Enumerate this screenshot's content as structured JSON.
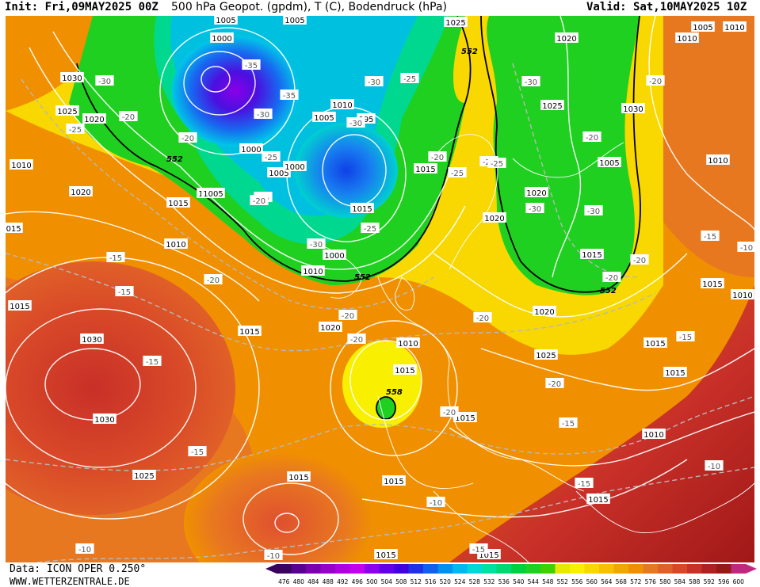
{
  "header": {
    "init": "Init: Fri,09MAY2025 00Z",
    "title": "500 hPa Geopot. (gpdm), T (C), Bodendruck (hPa)",
    "valid": "Valid: Sat,10MAY2025 10Z"
  },
  "footer": {
    "data_source": "Data: ICON OPER 0.250°",
    "website": "WWW.WETTERZENTRALE.DE"
  },
  "legend": {
    "values": [
      "476",
      "480",
      "484",
      "488",
      "492",
      "496",
      "500",
      "504",
      "508",
      "512",
      "516",
      "520",
      "524",
      "528",
      "532",
      "536",
      "540",
      "544",
      "548",
      "552",
      "556",
      "560",
      "564",
      "568",
      "572",
      "576",
      "580",
      "584",
      "588",
      "592",
      "596",
      "600"
    ],
    "colors": [
      "#3a0060",
      "#5a0090",
      "#7a00b0",
      "#9800c8",
      "#b000e0",
      "#c400f0",
      "#8c00f0",
      "#6400e8",
      "#4000e0",
      "#2030e8",
      "#1060f0",
      "#0090f0",
      "#00b8f0",
      "#00d8d8",
      "#00e0a0",
      "#00d870",
      "#00d040",
      "#20d020",
      "#40d000",
      "#e8e800",
      "#f8f000",
      "#f8d800",
      "#f8c000",
      "#f0a800",
      "#f09000",
      "#e87820",
      "#e06028",
      "#d84828",
      "#c83028",
      "#b02020",
      "#981818",
      "#c02880"
    ]
  },
  "pressure_labels": [
    "1005",
    "1005",
    "1025",
    "1020",
    "1005",
    "1010",
    "1000",
    "1030",
    "1025",
    "1020",
    "1010",
    "1005",
    "995",
    "1015",
    "1000",
    "1005",
    "1000",
    "1010",
    "1020",
    "1010",
    "1005",
    "1015",
    "1015",
    "1000",
    "1010",
    "1020",
    "1020",
    "1025",
    "1030",
    "1005",
    "1010",
    "1015",
    "1015",
    "1020",
    "1020",
    "1025",
    "1015",
    "1010",
    "1015",
    "1010",
    "1015",
    "1015",
    "1015",
    "1030",
    "1010",
    "1030",
    "1015",
    "1025",
    "1015",
    "1015",
    "1010",
    "1015",
    "1015",
    "1015",
    "1010",
    "1015"
  ],
  "temp_labels": [
    "-30",
    "-35",
    "-30",
    "-25",
    "-30",
    "-20",
    "-25",
    "-35",
    "-20",
    "-20",
    "-30",
    "-30",
    "-25",
    "-20",
    "-25",
    "-25",
    "-20",
    "-25",
    "-20",
    "-30",
    "-30",
    "-25",
    "-30",
    "-15",
    "-20",
    "-15",
    "-20",
    "-20",
    "-20",
    "-20",
    "-15",
    "-20",
    "-15",
    "-15",
    "-10",
    "-15",
    "-10",
    "-10",
    "-15",
    "-10",
    "-10",
    "-15",
    "-20",
    "-20",
    "-15",
    "-25"
  ],
  "height_labels": [
    "552",
    "552",
    "552",
    "558",
    "552"
  ]
}
